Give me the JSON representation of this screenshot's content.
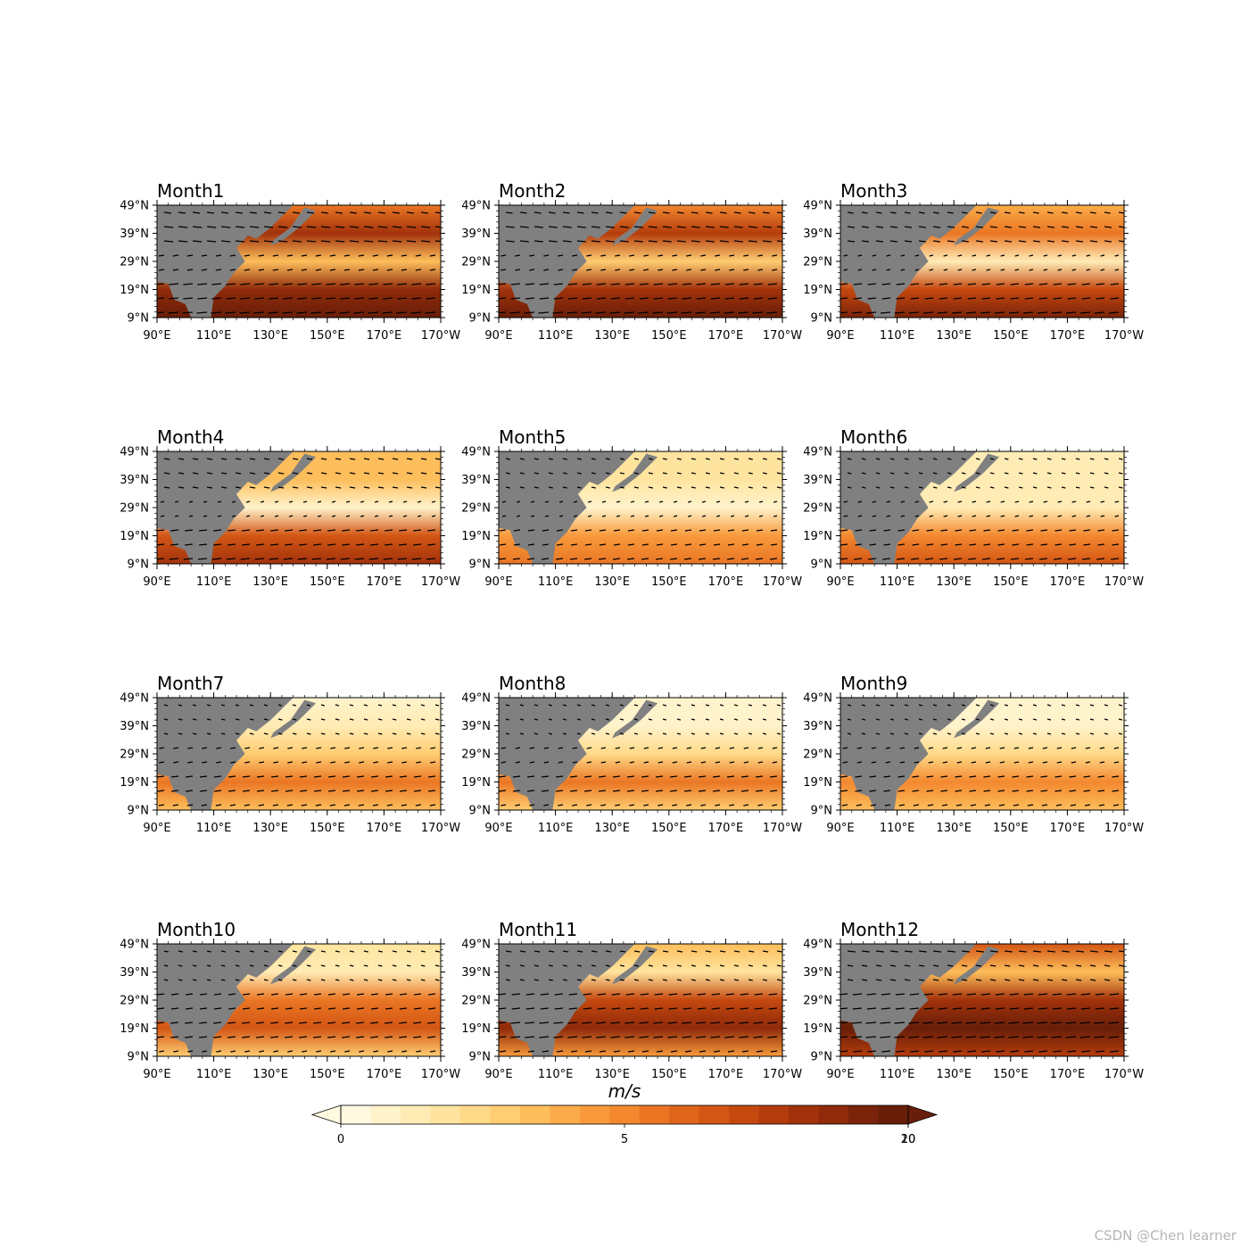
{
  "figure": {
    "panel_titles": [
      "Month1",
      "Month2",
      "Month3",
      "Month4",
      "Month5",
      "Month6",
      "Month7",
      "Month8",
      "Month9",
      "Month10",
      "Month11",
      "Month12"
    ],
    "lat_ticks": [
      "49°N",
      "39°N",
      "29°N",
      "19°N",
      "9°N"
    ],
    "lon_ticks": [
      "90°E",
      "110°E",
      "130°E",
      "150°E",
      "170°E",
      "170°W"
    ],
    "colorbar": {
      "units_label": "m/s",
      "tick_labels": [
        "0",
        "5",
        "10",
        "20"
      ],
      "colors": [
        "#fff9e0",
        "#fff3cc",
        "#ffecb5",
        "#ffe49f",
        "#ffda88",
        "#ffcd72",
        "#fdbe5b",
        "#fbac4a",
        "#f89a3c",
        "#f3882f",
        "#ea7624",
        "#df651b",
        "#d35614",
        "#c5480f",
        "#b43c0c",
        "#a2320b",
        "#8f2a0a",
        "#7a230a",
        "#681e09"
      ],
      "extend": "both"
    },
    "land_color": "#808080",
    "watermark": "CSDN @Chen learner"
  }
}
